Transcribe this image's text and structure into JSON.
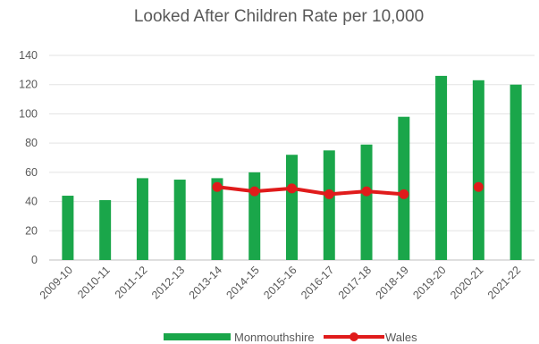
{
  "chart_data": {
    "type": "bar",
    "title": "Looked After Children Rate per 10,000",
    "xlabel": "",
    "ylabel": "",
    "categories": [
      "2009-10",
      "2010-11",
      "2011-12",
      "2012-13",
      "2013-14",
      "2014-15",
      "2015-16",
      "2016-17",
      "2017-18",
      "2018-19",
      "2019-20",
      "2020-21",
      "2021-22"
    ],
    "ylim": [
      0,
      140
    ],
    "yticks": [
      0,
      20,
      40,
      60,
      80,
      100,
      120,
      140
    ],
    "grid": true,
    "legend_position": "bottom",
    "series": [
      {
        "name": "Monmouthshire",
        "type": "bar",
        "color": "#1aa64a",
        "values": [
          44,
          41,
          56,
          55,
          56,
          60,
          72,
          75,
          79,
          98,
          126,
          123,
          120
        ]
      },
      {
        "name": "Wales",
        "type": "line",
        "color": "#e01b1b",
        "values": [
          null,
          null,
          null,
          null,
          50,
          47,
          49,
          45,
          47,
          45,
          null,
          50,
          null
        ]
      }
    ]
  }
}
